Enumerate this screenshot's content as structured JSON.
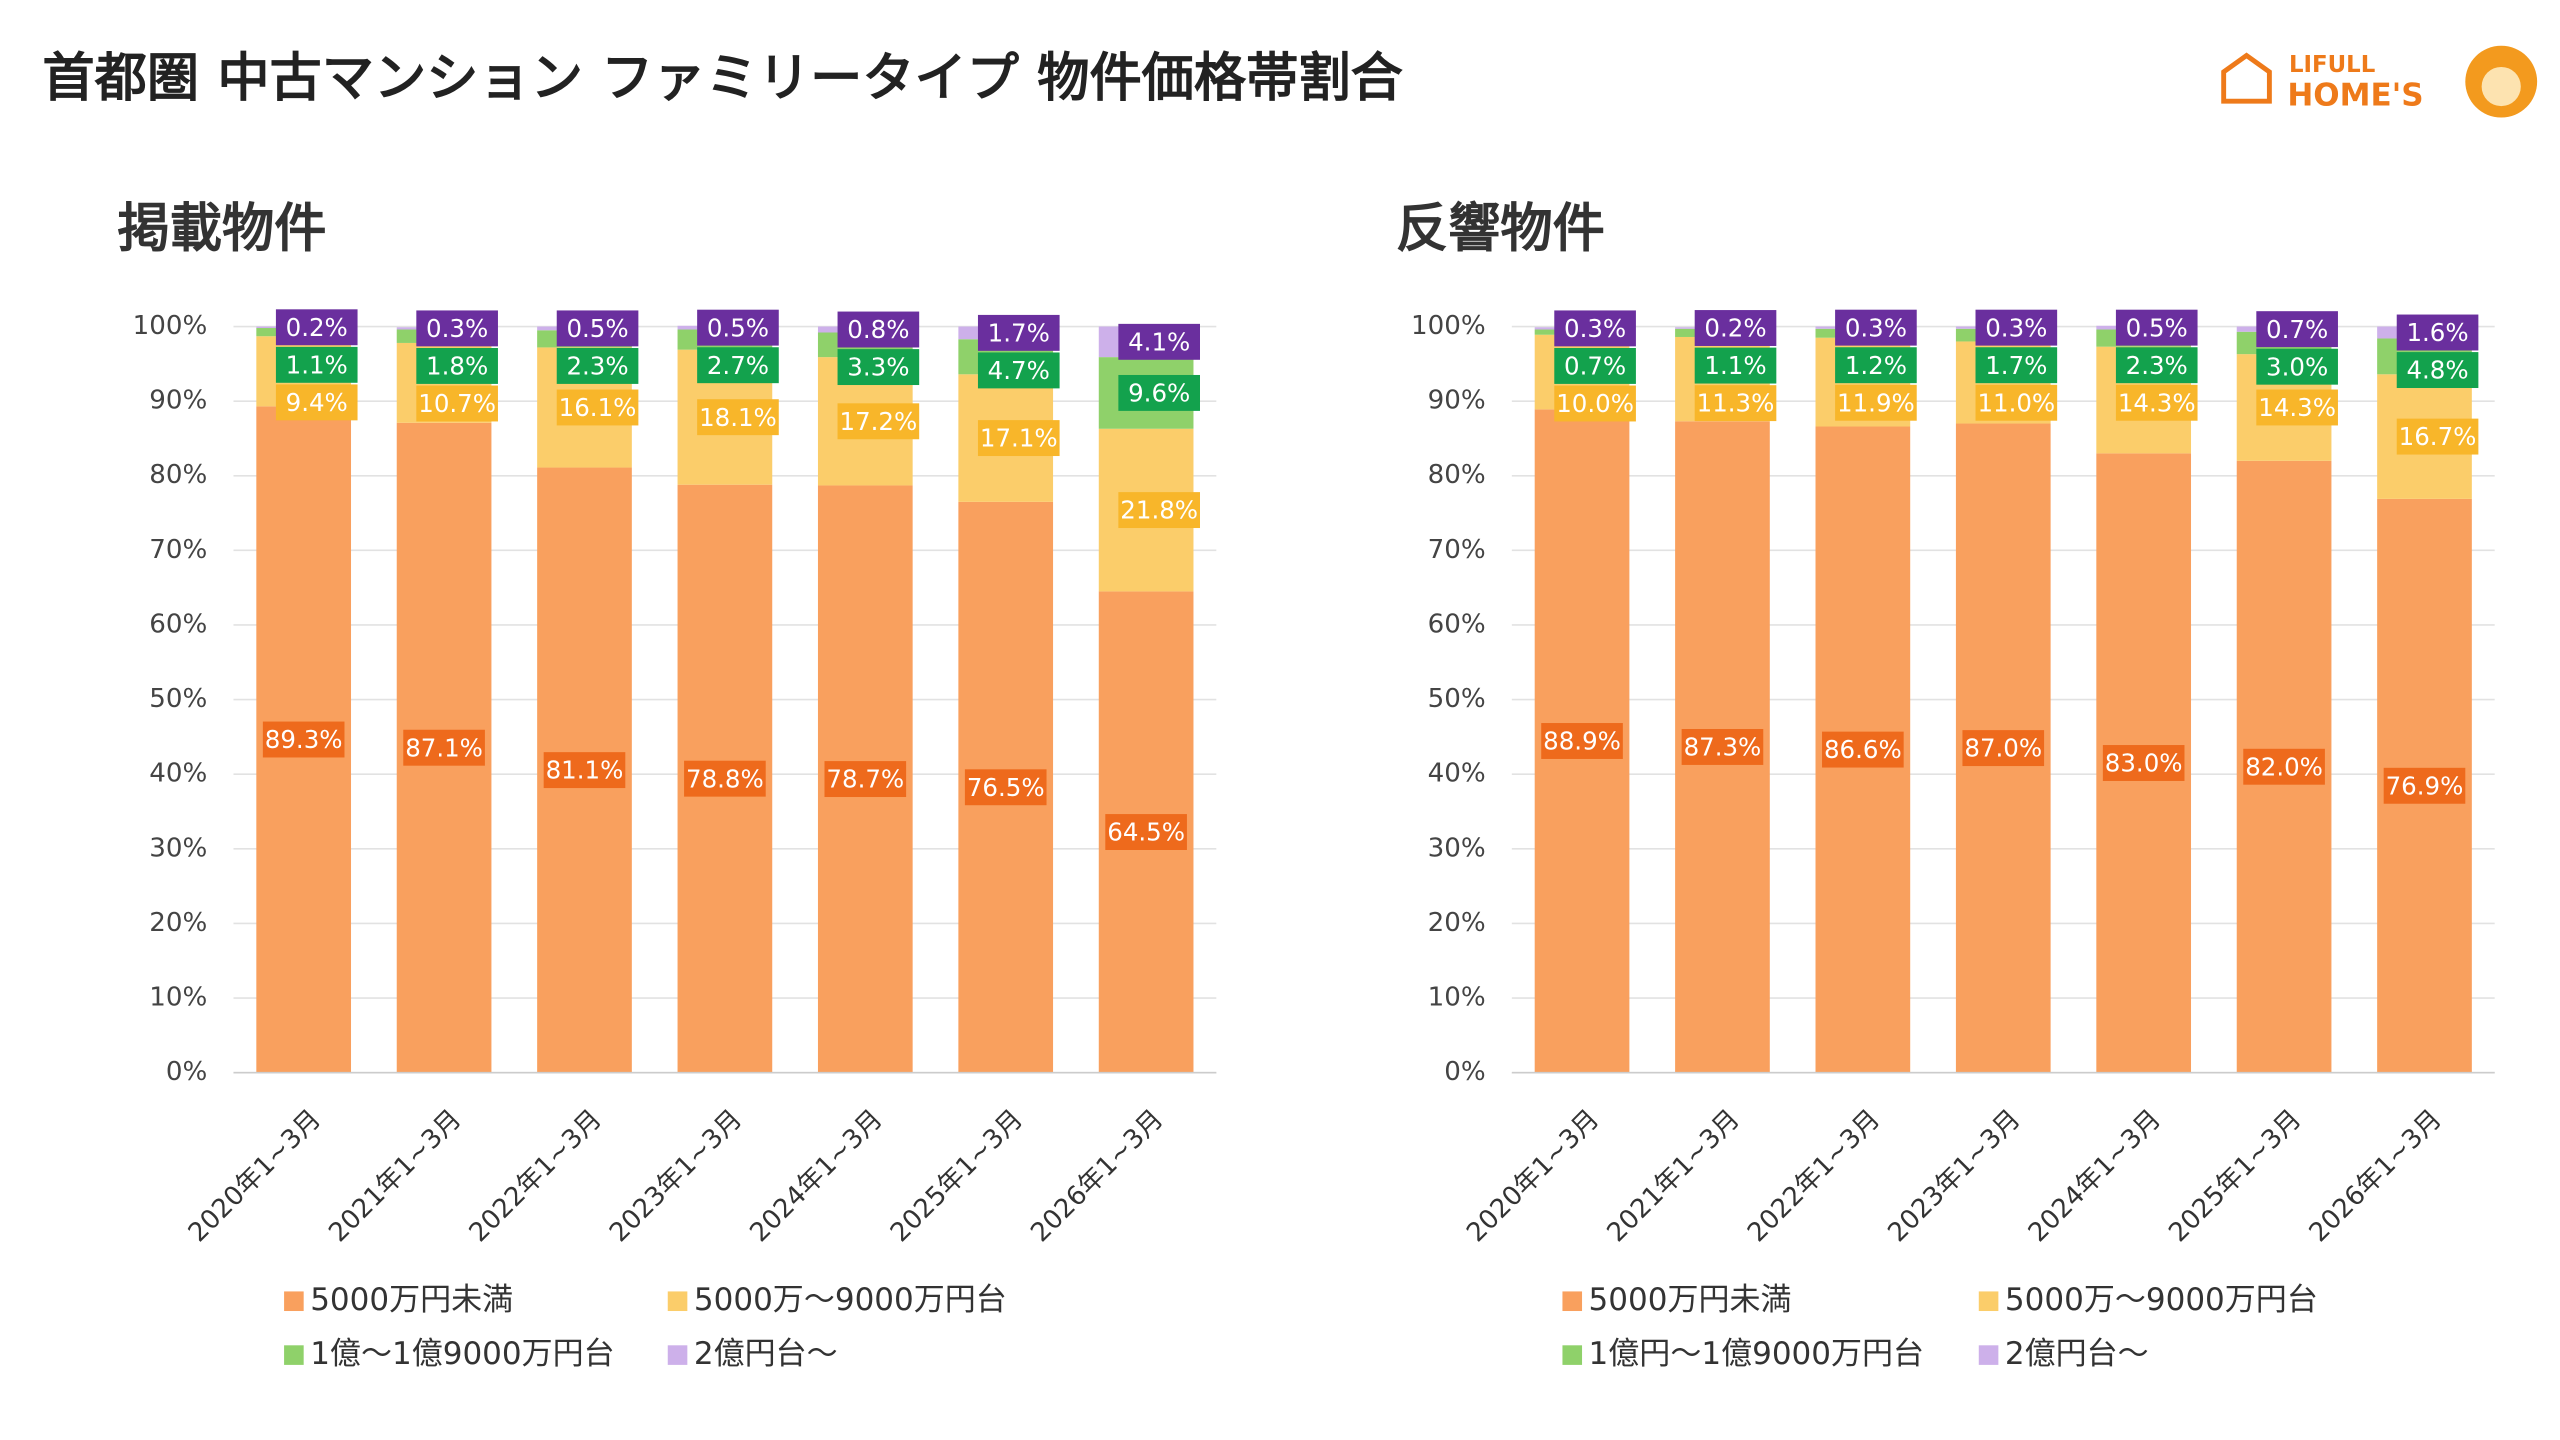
{
  "title": "首都圏 中古マンション ファミリータイプ 物件価格帯割合",
  "logo": {
    "top": "LIFULL",
    "bottom": "HOME'S"
  },
  "chart_data": [
    {
      "type": "stacked-bar",
      "title": "掲載物件",
      "categories": [
        "2020年1~3月",
        "2021年1~3月",
        "2022年1~3月",
        "2023年1~3月",
        "2024年1~3月",
        "2025年1~3月",
        "2026年1~3月"
      ],
      "ylim": [
        0,
        100
      ],
      "yticks": [
        {
          "value": 0,
          "label": "0%"
        },
        {
          "value": 10,
          "label": "10%"
        },
        {
          "value": 20,
          "label": "20%"
        },
        {
          "value": 30,
          "label": "30%"
        },
        {
          "value": 40,
          "label": "40%"
        },
        {
          "value": 50,
          "label": "50%"
        },
        {
          "value": 60,
          "label": "60%"
        },
        {
          "value": 70,
          "label": "70%"
        },
        {
          "value": 80,
          "label": "80%"
        },
        {
          "value": 90,
          "label": "90%"
        },
        {
          "value": 100,
          "label": "100%"
        }
      ],
      "grid": true,
      "series": [
        {
          "name": "5000万円未満",
          "color": "#f9a05e",
          "values": [
            89.3,
            87.1,
            81.1,
            78.8,
            78.7,
            76.5,
            64.5
          ],
          "value_labels": [
            "89.3%",
            "87.1%",
            "81.1%",
            "78.8%",
            "78.7%",
            "76.5%",
            "64.5%"
          ]
        },
        {
          "name": "5000万～9000万円台",
          "color": "#fbcd6a",
          "values": [
            9.4,
            10.7,
            16.1,
            18.1,
            17.2,
            17.1,
            21.8
          ],
          "value_labels": [
            "9.4%",
            "10.7%",
            "16.1%",
            "18.1%",
            "17.2%",
            "17.1%",
            "21.8%"
          ]
        },
        {
          "name": "1億～1億9000万円台",
          "color": "#8fd16a",
          "values": [
            1.1,
            1.8,
            2.3,
            2.7,
            3.3,
            4.7,
            9.6
          ],
          "value_labels": [
            "1.1%",
            "1.8%",
            "2.3%",
            "2.7%",
            "3.3%",
            "4.7%",
            "9.6%"
          ]
        },
        {
          "name": "2億円台～",
          "color": "#cdb0ea",
          "values": [
            0.2,
            0.3,
            0.5,
            0.5,
            0.8,
            1.7,
            4.1
          ],
          "value_labels": [
            "0.2%",
            "0.3%",
            "0.5%",
            "0.5%",
            "0.8%",
            "1.7%",
            "4.1%"
          ]
        }
      ]
    },
    {
      "type": "stacked-bar",
      "title": "反響物件",
      "categories": [
        "2020年1~3月",
        "2021年1~3月",
        "2022年1~3月",
        "2023年1~3月",
        "2024年1~3月",
        "2025年1~3月",
        "2026年1~3月"
      ],
      "ylim": [
        0,
        100
      ],
      "yticks": [
        {
          "value": 0,
          "label": "0%"
        },
        {
          "value": 10,
          "label": "10%"
        },
        {
          "value": 20,
          "label": "20%"
        },
        {
          "value": 30,
          "label": "30%"
        },
        {
          "value": 40,
          "label": "40%"
        },
        {
          "value": 50,
          "label": "50%"
        },
        {
          "value": 60,
          "label": "60%"
        },
        {
          "value": 70,
          "label": "70%"
        },
        {
          "value": 80,
          "label": "80%"
        },
        {
          "value": 90,
          "label": "90%"
        },
        {
          "value": 100,
          "label": "100%"
        }
      ],
      "grid": true,
      "series": [
        {
          "name": "5000万円未満",
          "color": "#f9a05e",
          "values": [
            88.9,
            87.3,
            86.6,
            87.0,
            83.0,
            82.0,
            76.9
          ],
          "value_labels": [
            "88.9%",
            "87.3%",
            "86.6%",
            "87.0%",
            "83.0%",
            "82.0%",
            "76.9%"
          ]
        },
        {
          "name": "5000万～9000万円台",
          "color": "#fbcd6a",
          "values": [
            10.0,
            11.3,
            11.9,
            11.0,
            14.3,
            14.3,
            16.7
          ],
          "value_labels": [
            "10.0%",
            "11.3%",
            "11.9%",
            "11.0%",
            "14.3%",
            "14.3%",
            "16.7%"
          ]
        },
        {
          "name": "1億円～1億9000万円台",
          "color": "#8fd16a",
          "values": [
            0.7,
            1.1,
            1.2,
            1.7,
            2.3,
            3.0,
            4.8
          ],
          "value_labels": [
            "0.7%",
            "1.1%",
            "1.2%",
            "1.7%",
            "2.3%",
            "3.0%",
            "4.8%"
          ]
        },
        {
          "name": "2億円台～",
          "color": "#cdb0ea",
          "values": [
            0.3,
            0.2,
            0.3,
            0.3,
            0.5,
            0.7,
            1.6
          ],
          "value_labels": [
            "0.3%",
            "0.2%",
            "0.3%",
            "0.3%",
            "0.5%",
            "0.7%",
            "1.6%"
          ]
        }
      ]
    }
  ]
}
